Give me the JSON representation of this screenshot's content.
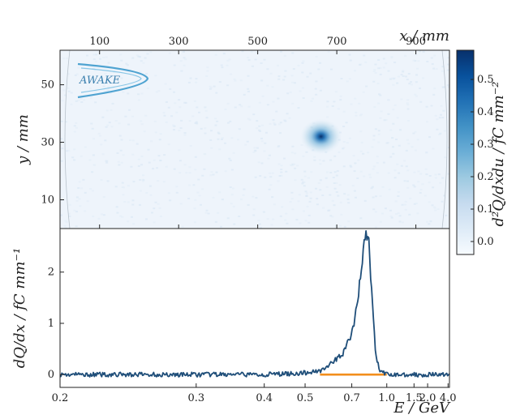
{
  "chart_data": [
    {
      "type": "heatmap",
      "xlabel": "x / mm",
      "ylabel": "y / mm",
      "colorbar_label": "d²Q/dxdu / fC mm⁻²",
      "x_ticks": [
        100,
        300,
        500,
        700,
        900
      ],
      "y_ticks": [
        10,
        30,
        50
      ],
      "xlim": [
        0,
        985
      ],
      "ylim": [
        0,
        62
      ],
      "colorbar_ticks": [
        0.0,
        0.1,
        0.2,
        0.3,
        0.4,
        0.5
      ],
      "colorbar_range": [
        -0.04,
        0.59
      ],
      "colormap": [
        "#f7fbff",
        "#deebf7",
        "#c6dbef",
        "#9ecae1",
        "#6baed6",
        "#4292c6",
        "#2171b5",
        "#08519c",
        "#08306b"
      ],
      "peak": {
        "x": 660,
        "y": 32,
        "value": 0.59
      },
      "logo_text": "AWAKE"
    },
    {
      "type": "line",
      "xlabel": "E / GeV",
      "ylabel": "dQ/dx / fC mm⁻¹",
      "x_scale": "reciprocal",
      "xlim": [
        0.2,
        4.3
      ],
      "ylim": [
        -0.25,
        2.85
      ],
      "x_ticks": [
        0.2,
        0.3,
        0.4,
        0.5,
        0.7,
        1.0,
        1.5,
        2.0,
        4.0
      ],
      "x_tick_labels": [
        "0.2",
        "0.3",
        "0.4",
        "0.5",
        "0.7",
        "1.0",
        "1.5",
        "2.0",
        "4.0"
      ],
      "y_ticks": [
        0,
        1,
        2
      ],
      "series": [
        {
          "color": "#1f4e79",
          "x": [
            0.2,
            0.3,
            0.4,
            0.5,
            0.55,
            0.6,
            0.65,
            0.7,
            0.72,
            0.74,
            0.76,
            0.78,
            0.8,
            0.82,
            0.85,
            0.88,
            0.92,
            0.97,
            1.0,
            1.2,
            1.5,
            2.0,
            3.0,
            4.3
          ],
          "y": [
            0.0,
            0.0,
            0.0,
            0.03,
            0.08,
            0.22,
            0.42,
            0.78,
            1.1,
            1.5,
            2.05,
            2.5,
            2.78,
            2.55,
            1.4,
            0.4,
            0.08,
            0.02,
            0.0,
            0.0,
            0.0,
            0.0,
            0.0,
            0.0
          ]
        },
        {
          "color": "#f28e1c",
          "x": [
            0.55,
            1.0
          ],
          "y": [
            0.0,
            0.0
          ]
        }
      ]
    }
  ]
}
